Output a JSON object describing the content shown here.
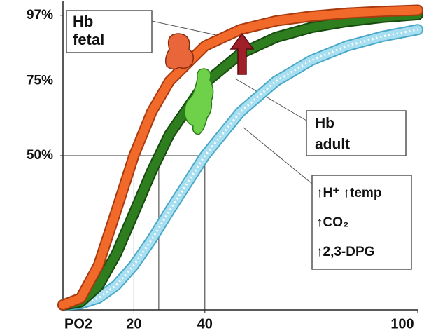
{
  "chart_data": {
    "type": "line",
    "x_label": "PO2",
    "x": [
      0,
      5,
      10,
      15,
      20,
      25,
      30,
      40,
      50,
      60,
      70,
      80,
      90,
      100
    ],
    "series": [
      {
        "color": "#f26a2a",
        "values": [
          0,
          2.3,
          13.3,
          31.5,
          50,
          64.6,
          74.9,
          86.7,
          92.2,
          95.1,
          96.7,
          97.7,
          98.3,
          98.7
        ]
      },
      {
        "color": "#2e7d1e",
        "values": [
          0,
          1.0,
          6.4,
          17.0,
          30.8,
          44.8,
          57.1,
          74.3,
          84.1,
          89.6,
          92.9,
          94.9,
          96.3,
          97.2
        ]
      },
      {
        "color": "#a8dff0",
        "values": [
          0,
          0.4,
          2.3,
          6.6,
          13.3,
          21.9,
          31.5,
          50,
          64.6,
          74.9,
          81.9,
          86.7,
          89.9,
          92.2
        ]
      }
    ],
    "xlim": [
      0,
      100
    ],
    "xticks": [
      20,
      40,
      100
    ],
    "ylim": [
      0,
      100
    ],
    "yticks": [
      {
        "value": 97,
        "label": "97%"
      },
      {
        "value": 75,
        "label": "75%"
      },
      {
        "value": 50,
        "label": "50%"
      }
    ],
    "drop_line_y": 50,
    "drop_lines_x": [
      20,
      27,
      40
    ],
    "annotations": [
      {
        "lines": [
          "Hb",
          "fetal"
        ]
      },
      {
        "lines": [
          "Hb",
          "adult"
        ]
      },
      {
        "lines": [
          "↑H⁺ ↑temp",
          "↑CO₂",
          "↑2,3-DPG"
        ]
      }
    ]
  }
}
